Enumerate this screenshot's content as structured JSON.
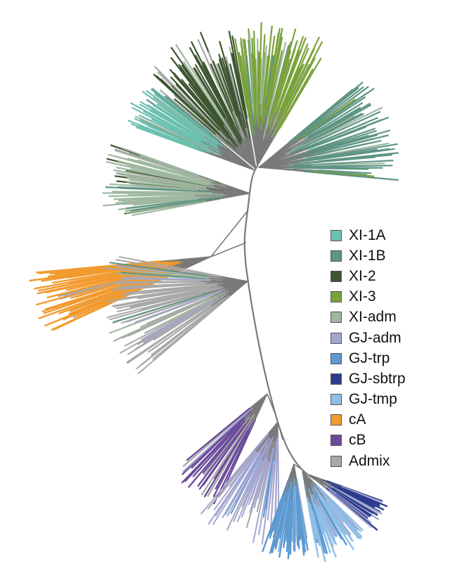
{
  "legend": {
    "items": [
      {
        "key": "XI-1A",
        "label": "XI-1A",
        "color": "#6cc0b0"
      },
      {
        "key": "XI-1B",
        "label": "XI-1B",
        "color": "#5e9484"
      },
      {
        "key": "XI-2",
        "label": "XI-2",
        "color": "#3d5630"
      },
      {
        "key": "XI-3",
        "label": "XI-3",
        "color": "#7aa23a"
      },
      {
        "key": "XI-adm",
        "label": "XI-adm",
        "color": "#9fb89f"
      },
      {
        "key": "GJ-adm",
        "label": "GJ-adm",
        "color": "#a4a6d2"
      },
      {
        "key": "GJ-trp",
        "label": "GJ-trp",
        "color": "#5e99d0"
      },
      {
        "key": "GJ-sbtrp",
        "label": "GJ-sbtrp",
        "color": "#2c3d8c"
      },
      {
        "key": "GJ-tmp",
        "label": "GJ-tmp",
        "color": "#8fbfe6"
      },
      {
        "key": "cA",
        "label": "cA",
        "color": "#f29a2e"
      },
      {
        "key": "cB",
        "label": "cB",
        "color": "#6a4a9b"
      },
      {
        "key": "Admix",
        "label": "Admix",
        "color": "#a8a8a8"
      }
    ]
  },
  "tree": {
    "branch_color": "#7a7a7a",
    "clades": [
      {
        "group": "XI-3"
      },
      {
        "group": "XI-2"
      },
      {
        "group": "XI-1A"
      },
      {
        "group": "XI-1B"
      },
      {
        "group": "XI-adm"
      },
      {
        "group": "cA"
      },
      {
        "group": "Admix"
      },
      {
        "group": "cB"
      },
      {
        "group": "GJ-adm"
      },
      {
        "group": "GJ-trp"
      },
      {
        "group": "GJ-tmp"
      },
      {
        "group": "GJ-sbtrp"
      }
    ]
  }
}
